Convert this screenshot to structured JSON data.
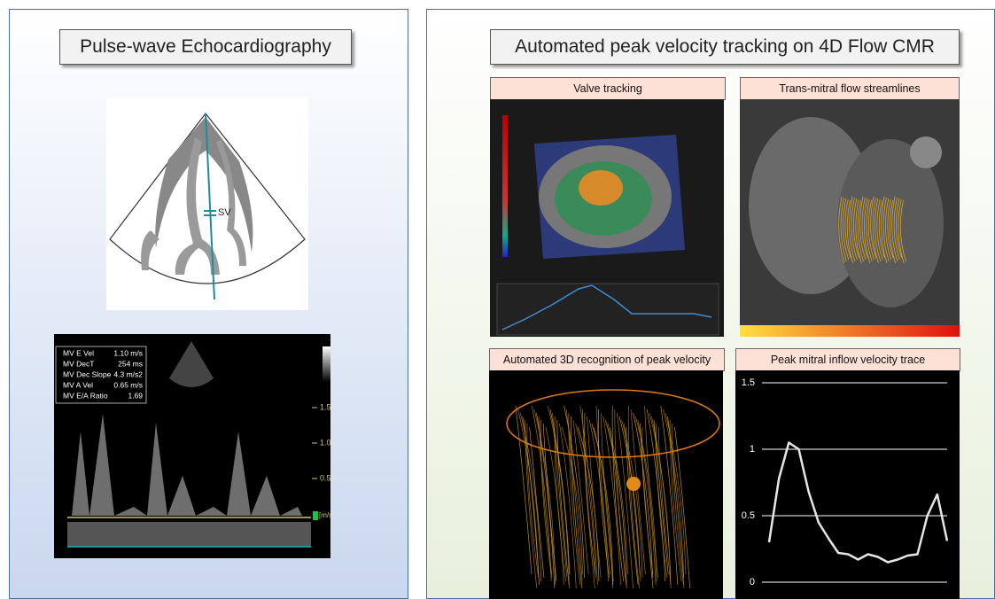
{
  "left_panel": {
    "title": "Pulse-wave Echocardiography",
    "diagram_label": "SV",
    "echo": {
      "measurements": [
        {
          "label": "MV E Vel",
          "value": "1.10 m/s"
        },
        {
          "label": "MV DecT",
          "value": "254 ms"
        },
        {
          "label": "MV Dec Slope",
          "value": "4.3 m/s2"
        },
        {
          "label": "MV A Vel",
          "value": "0.65 m/s"
        },
        {
          "label": "MV E/A Ratio",
          "value": "1.69"
        }
      ],
      "scale_labels": [
        "1.5",
        "1.0",
        "0.5"
      ],
      "unit": "[m/s]"
    }
  },
  "right_panel": {
    "title": "Automated peak velocity tracking on 4D Flow CMR",
    "panels": [
      "Valve tracking",
      "Trans-mitral flow streamlines",
      "Automated 3D recognition of peak velocity"
    ],
    "chart_data": {
      "type": "line",
      "title": "Peak mitral inflow velocity trace",
      "color": "#e6e6e6",
      "values": [
        0.3,
        0.78,
        1.05,
        1.0,
        0.68,
        0.45,
        0.33,
        0.22,
        0.21,
        0.17,
        0.21,
        0.19,
        0.15,
        0.17,
        0.2,
        0.21,
        0.5,
        0.66,
        0.31
      ],
      "ylim": [
        0,
        1.5
      ],
      "yticks": [
        0,
        0.5,
        1,
        1.5
      ],
      "grid": true
    }
  }
}
